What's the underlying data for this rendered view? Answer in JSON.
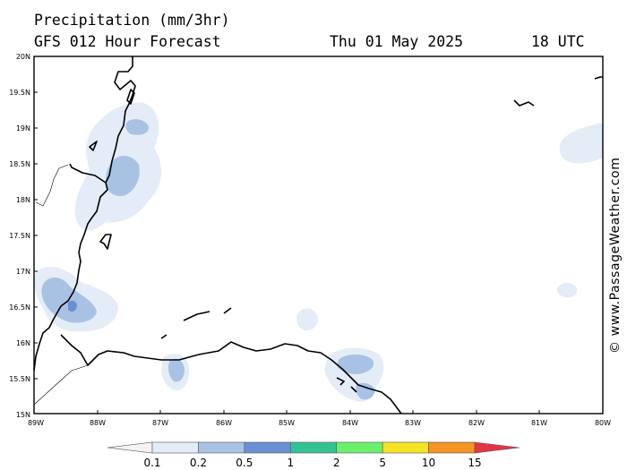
{
  "header": {
    "title": "Precipitation (mm/3hr)",
    "model": "GFS 012 Hour Forecast",
    "date": "Thu 01 May 2025",
    "time": "18 UTC"
  },
  "credit": "© www.PassageWeather.com",
  "map": {
    "lat_ticks": [
      "20N",
      "19.5N",
      "19N",
      "18.5N",
      "18N",
      "17.5N",
      "17N",
      "16.5N",
      "16N",
      "15.5N",
      "15N"
    ],
    "lon_ticks": [
      "89W",
      "88W",
      "87W",
      "86W",
      "85W",
      "84W",
      "83W",
      "82W",
      "81W",
      "80W"
    ],
    "lat_range": [
      15,
      20
    ],
    "lon_range": [
      -89,
      -80
    ]
  },
  "legend": {
    "labels": [
      "0.1",
      "0.2",
      "0.5",
      "1",
      "2",
      "5",
      "10",
      "15"
    ],
    "colors": [
      "#f4f4f8",
      "#e4ecf8",
      "#a8c2e4",
      "#6a90d4",
      "#34c294",
      "#6cf06c",
      "#f4e424",
      "#f49424",
      "#e43444"
    ]
  }
}
